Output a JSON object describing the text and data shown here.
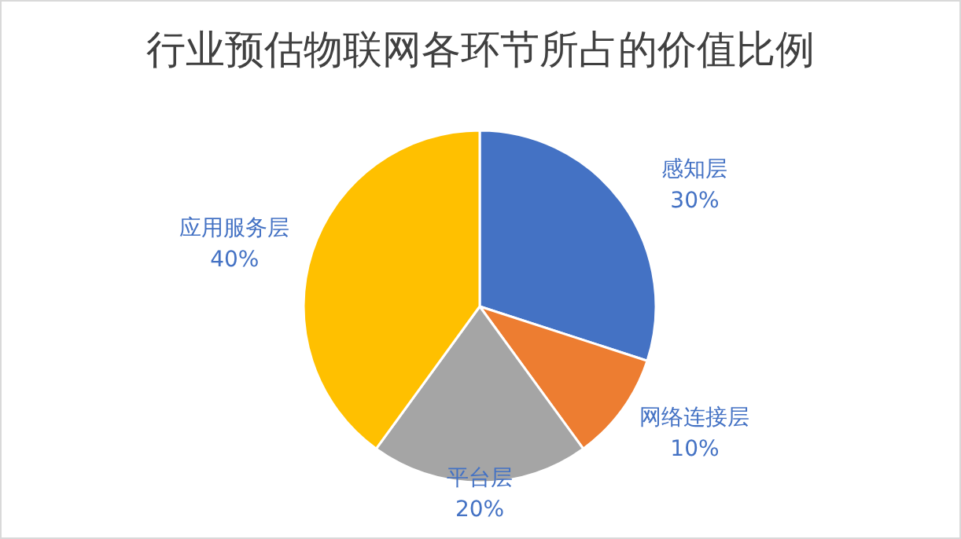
{
  "chart_data": {
    "type": "pie",
    "title": "行业预估物联网各环节所占的价值比例",
    "categories": [
      "感知层",
      "网络连接层",
      "平台层",
      "应用服务层"
    ],
    "values": [
      30,
      10,
      20,
      40
    ],
    "colors": [
      "#4472c4",
      "#ed7d31",
      "#a5a5a5",
      "#ffc000"
    ],
    "value_labels": [
      "30%",
      "10%",
      "20%",
      "40%"
    ]
  }
}
